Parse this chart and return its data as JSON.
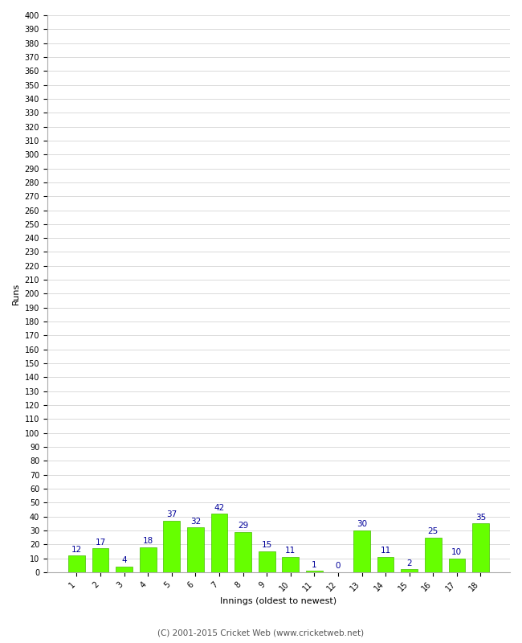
{
  "innings": [
    1,
    2,
    3,
    4,
    5,
    6,
    7,
    8,
    9,
    10,
    11,
    12,
    13,
    14,
    15,
    16,
    17,
    18
  ],
  "runs": [
    12,
    17,
    4,
    18,
    37,
    32,
    42,
    29,
    15,
    11,
    1,
    0,
    30,
    11,
    2,
    25,
    10,
    35
  ],
  "bar_color": "#66ff00",
  "bar_edge_color": "#44bb00",
  "label_color": "#000099",
  "xlabel": "Innings (oldest to newest)",
  "ylabel": "Runs",
  "ylim": [
    0,
    400
  ],
  "ytick_step": 10,
  "grid_color": "#cccccc",
  "background_color": "#ffffff",
  "footer": "(C) 2001-2015 Cricket Web (www.cricketweb.net)",
  "label_fontsize": 7.5,
  "axis_label_fontsize": 8,
  "tick_fontsize": 7,
  "footer_fontsize": 7.5,
  "bar_width": 0.7
}
